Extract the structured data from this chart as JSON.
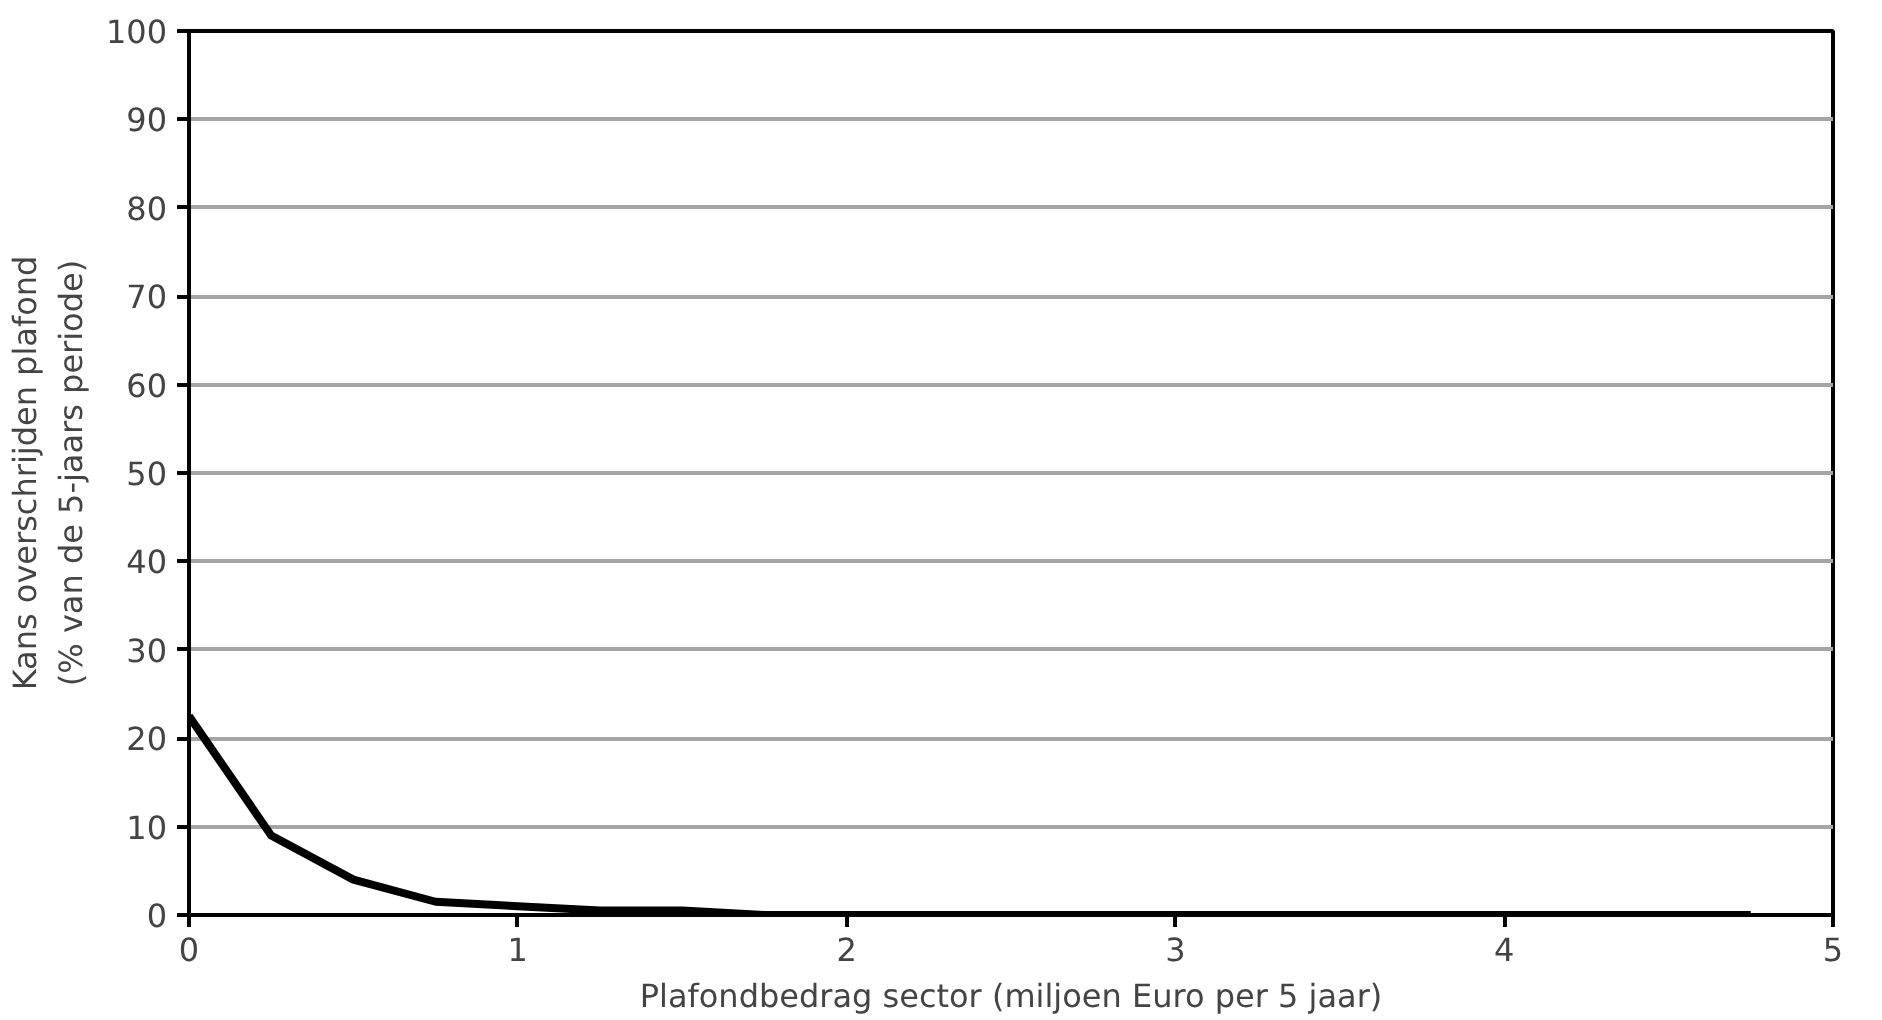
{
  "chart_data": {
    "type": "line",
    "xlabel": "Plafondbedrag sector (miljoen Euro per 5 jaar)",
    "ylabel": "Kans overschrijden plafond\n(% van de 5-jaars periode)",
    "x": [
      0,
      0.25,
      0.5,
      0.75,
      1,
      1.25,
      1.5,
      1.75,
      2,
      2.25,
      2.5,
      2.75,
      3,
      3.25,
      3.5,
      3.75,
      4,
      4.25,
      4.5,
      4.75
    ],
    "series": [
      {
        "color": "#000000",
        "values": [
          22.5,
          9,
          4,
          1.5,
          1,
          0.5,
          0.5,
          0,
          0,
          0,
          0,
          0,
          0,
          0,
          0,
          0,
          0,
          0,
          0,
          0
        ]
      }
    ],
    "xlim": [
      0,
      5
    ],
    "xticks": [
      0,
      1,
      2,
      3,
      4,
      5
    ],
    "ylim": [
      0,
      100
    ],
    "yticks": [
      0,
      10,
      20,
      30,
      40,
      50,
      60,
      70,
      80,
      90,
      100
    ],
    "grid": "y",
    "marker": "none",
    "line_style": "solid"
  }
}
